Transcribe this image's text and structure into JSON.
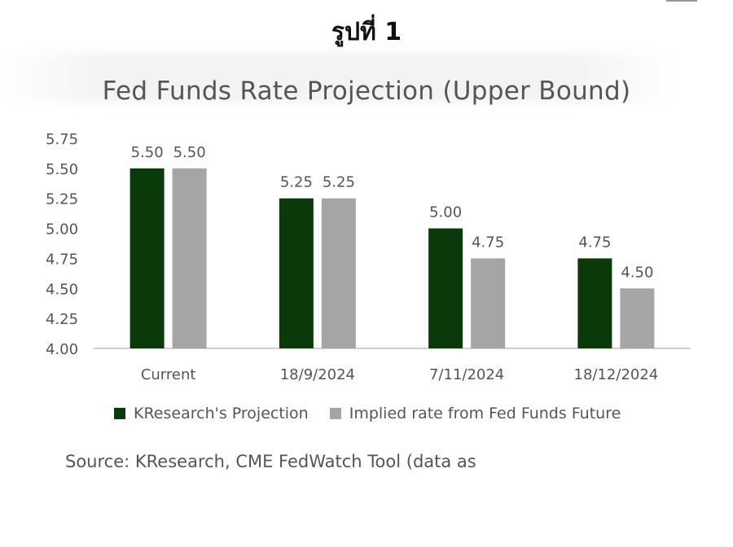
{
  "figure_label": "รูปที่ 1",
  "source": "Source: KResearch, CME FedWatch Tool (data as",
  "colors": {
    "projection": "#0a3a0a",
    "implied": "#a5a5a5",
    "axis": "#d0d0d0",
    "text": "#555555"
  },
  "chart_data": {
    "type": "bar",
    "title": "Fed Funds Rate Projection (Upper Bound)",
    "categories": [
      "Current",
      "18/9/2024",
      "7/11/2024",
      "18/12/2024"
    ],
    "series": [
      {
        "name": "KResearch's Projection",
        "values": [
          5.5,
          5.25,
          5.0,
          4.75
        ],
        "labels": [
          "5.50",
          "5.25",
          "5.00",
          "4.75"
        ]
      },
      {
        "name": "Implied rate from Fed Funds Future",
        "values": [
          5.5,
          5.25,
          4.75,
          4.5
        ],
        "labels": [
          "5.50",
          "5.25",
          "4.75",
          "4.50"
        ]
      }
    ],
    "yticks": [
      "4.00",
      "4.25",
      "4.50",
      "4.75",
      "5.00",
      "5.25",
      "5.50",
      "5.75"
    ],
    "ylim": [
      4.0,
      5.75
    ],
    "grid": false,
    "legend_position": "bottom"
  }
}
